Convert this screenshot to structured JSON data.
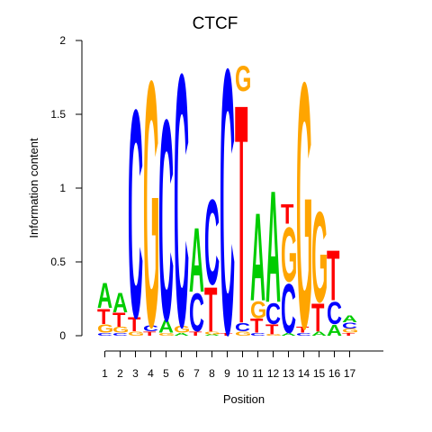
{
  "chart_data": {
    "type": "sequence-logo",
    "title": "CTCF",
    "xlabel": "Position",
    "ylabel": "Information content",
    "ylim": [
      0,
      2
    ],
    "yticks": [
      0,
      0.5,
      1,
      1.5,
      2
    ],
    "ytick_labels": [
      "0",
      "0.5",
      "1",
      "1.5",
      "2"
    ],
    "positions": [
      "1",
      "2",
      "3",
      "4",
      "5",
      "6",
      "7",
      "8",
      "9",
      "10",
      "11",
      "12",
      "13",
      "14",
      "15",
      "16",
      "17"
    ],
    "base_colors": {
      "A": "#00cc00",
      "C": "#0000ff",
      "G": "#ffa500",
      "T": "#ff0000"
    },
    "columns": [
      [
        [
          "C",
          0.02
        ],
        [
          "G",
          0.06
        ],
        [
          "T",
          0.11
        ],
        [
          "A",
          0.18
        ]
      ],
      [
        [
          "C",
          0.02
        ],
        [
          "G",
          0.04
        ],
        [
          "T",
          0.1
        ],
        [
          "A",
          0.14
        ]
      ],
      [
        [
          "G",
          0.03
        ],
        [
          "T",
          0.1
        ],
        [
          "C",
          1.49
        ]
      ],
      [
        [
          "T",
          0.03
        ],
        [
          "C",
          0.04
        ],
        [
          "G",
          1.76
        ]
      ],
      [
        [
          "G",
          0.02
        ],
        [
          "A",
          0.09
        ],
        [
          "C",
          1.44
        ]
      ],
      [
        [
          "A",
          0.02
        ],
        [
          "G",
          0.05
        ],
        [
          "C",
          1.81
        ]
      ],
      [
        [
          "T",
          0.03
        ],
        [
          "C",
          0.27
        ],
        [
          "A",
          0.46
        ]
      ],
      [
        [
          "A",
          0.01
        ],
        [
          "G",
          0.02
        ],
        [
          "T",
          0.32
        ],
        [
          "C",
          0.61
        ]
      ],
      [
        [
          "T",
          0.02
        ],
        [
          "C",
          1.9
        ]
      ],
      [
        [
          "G",
          0.03
        ],
        [
          "C",
          0.06
        ],
        [
          "T",
          1.57
        ],
        [
          "G",
          0.18
        ]
      ],
      [
        [
          "C",
          0.02
        ],
        [
          "T",
          0.1
        ],
        [
          "G",
          0.12
        ],
        [
          "A",
          0.63
        ]
      ],
      [
        [
          "G",
          0.01
        ],
        [
          "T",
          0.07
        ],
        [
          "C",
          0.15
        ],
        [
          "A",
          0.8
        ]
      ],
      [
        [
          "A",
          0.02
        ],
        [
          "C",
          0.35
        ],
        [
          "G",
          0.39
        ],
        [
          "T",
          0.14
        ]
      ],
      [
        [
          "C",
          0.02
        ],
        [
          "T",
          0.04
        ],
        [
          "G",
          1.76
        ]
      ],
      [
        [
          "A",
          0.03
        ],
        [
          "T",
          0.2
        ],
        [
          "G",
          0.65
        ]
      ],
      [
        [
          "A",
          0.08
        ],
        [
          "C",
          0.16
        ],
        [
          "T",
          0.36
        ]
      ],
      [
        [
          "T",
          0.02
        ],
        [
          "G",
          0.03
        ],
        [
          "C",
          0.04
        ],
        [
          "A",
          0.05
        ]
      ]
    ]
  }
}
